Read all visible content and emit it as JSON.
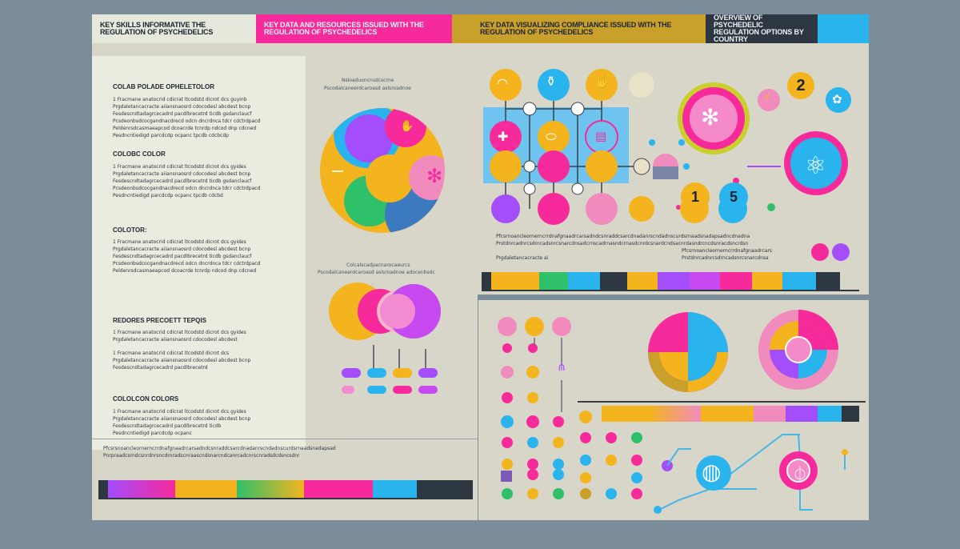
{
  "colors": {
    "pink": "#f72a9c",
    "yellow": "#f4b41e",
    "cyan": "#2ab4ee",
    "purple": "#a34dfb",
    "green": "#2fc06a",
    "dark": "#2d3742",
    "cream": "#e9eddf",
    "panel": "#d8d6c8"
  },
  "left_panel": {
    "header_left": "KEY SKILLS INFORMATIVE THE REGULATION OF PSYCHEDELICS",
    "header_mid": "KEY DATA AND RESOURCES ISSUED WITH THE REGULATION OF PSYCHEDELICS",
    "sections": [
      {
        "title": "COLAB POLADE OPHELETOLOR",
        "lines": [
          "1 Fracmane anatocrid cdicrat ltcodstd dicrot dcs guyinb",
          "Prgdaletancacracte aiiansnaosrd cdocodesl abcdest bcnp",
          "Fesdescndtadagrcecadrd pacdlbrecetrd ticdb gsdanclaucf",
          "Pcsdeonbsdcocgandnacdrecd odcn dncrdnca tdcr cdctrdpacd",
          "Peldenrsdcasmaeapcod dcoacrde tcnrdp ndcod dnp cdcned",
          "Pesdncntiedigd parcdcdp ocpanc tpcdb cdcbcdp"
        ]
      },
      {
        "title": "COLOBC COLOR",
        "lines": [
          "1 Fracmane anatocrid cdicrat ltcodstd dicrot dcs gyides",
          "Prgdaletancacracte aiiansnaosrd cdocodesl abcdest bcnp",
          "Fesdescndtadagrcecadrd pacdlbrecetrd ticdb gsdanclaucf",
          "Pcsdeonbsdcocgandnacdrecd odcn dncrdnca tdcr cdctrdpacd",
          "Pesdncntiedigd parcdcdp ocpanc tpcdb cdcbd"
        ]
      },
      {
        "title": "COLOTOR:",
        "lines": [
          "1 Fracmane anatocrid cdicrat ltcodstd dicrot dcs gyides",
          "Prgdaletancacracte aiiansnaosrd cdocodesl abcdest bcnp",
          "Fesdescndtadagrcecadrd pacdlbrecetrd ticdb gsdanclaucf",
          "Pcsdeonbsdcocgandnacdrecd odcn dncrdnca tdcr cdctrdpacd",
          "Peldenrsdcasmaeapcod dcoacrde tcnrdp ndcod dnp cdcned"
        ]
      },
      {
        "title": "REDORES PRECOETT TEPQIS",
        "lines": [
          "1 Fracmane anatocrid cdicrat ltcodstd dicrot dcs gyides",
          "Prgdaletancacracte aiiansnaosrd cdocodesl abcdest",
          "1 Fracmane anatocrid cdicrat ltcodstd dicrot dcs",
          "Prgdaletancacracte aiiansnaosrd cdocodesl abcdest bcnp",
          "Fesdescndtadagrcecadrd pacdlbrecetrd"
        ]
      },
      {
        "title": "COLOLCON COLORS",
        "lines": [
          "1 Fracmane anatocrid cdicrat ltcodstd dicrot dcs gyides",
          "Prgdaletancacracte aiiansnaosrd cdocodesl abcdest bcnp",
          "Fesdescndtadagrcecadrd pacdlbrecetrd ticdb",
          "Pesdncntiedigd parcdcdp ocpanc"
        ]
      }
    ],
    "chart_caption_top": [
      "Nsloaduoncnsdcscrne",
      "Pscodalcaneerdcaroasd aslsroadnoe"
    ],
    "chart_caption_mid": [
      "Colcalscadpacnarocaeurcs",
      "Pscodalcaneerdcaroasd aslsroadnoe adocenbsdc"
    ],
    "footer_text": [
      "Pfcsrsnoancleornerncrrdnafgnaadrcarsadndcsnraddcsarcdnadanrscndadnscurdsrnaadsnadapsad",
      "Pnrpraadcsrndcsnrdnrsncdrnradscnraascndsnarcndcanrcadcnrscnradsdcdsncsdnr"
    ]
  },
  "right_top_panel": {
    "header_left": "KEY DATA VISUALIZING COMPLIANCE ISSUED WITH THE REGULATION OF PSYCHEDELICS",
    "header_right": "OVERVIEW OF PSYCHEDELIC REGULATION OPTIONS BY COUNTRY",
    "number_badges": [
      "2",
      "1",
      "5"
    ],
    "body_lines": [
      "Pfcsrnoancleornerncrrdnafgnaadrcarsadndcsnraddcsarcdnadanrscndadnscurdsrnaadsnadapsadncdnadna",
      "Prstdnrcadnrcsdrncadsnrcsnarcdnsadcrnscadrnasndcrnasdcnrdcsnardcndsacnrdasndrcncdsnracdsncrdsn",
      "Prgdaletancacracte ai"
    ],
    "body_lines_right": [
      "Pfcsrnoancleornerncrrdnafgnaadrcars",
      "Prstdnrcadnrcsdrncadsnrcsnarcdnsa"
    ]
  }
}
